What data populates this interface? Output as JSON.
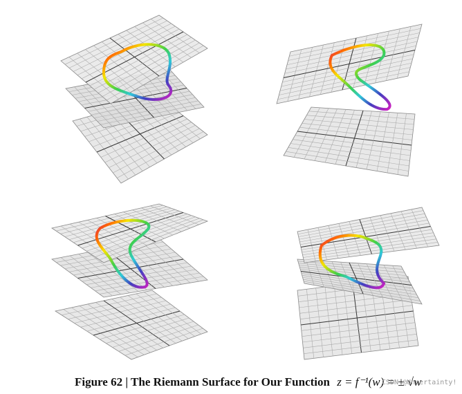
{
  "caption": {
    "label": "Figure 62 |",
    "title": "The Riemann Surface for Our Function",
    "equation": "z = f⁻¹(w) = ± √w"
  },
  "watermark": "CSDN @Uncertainty!"
}
